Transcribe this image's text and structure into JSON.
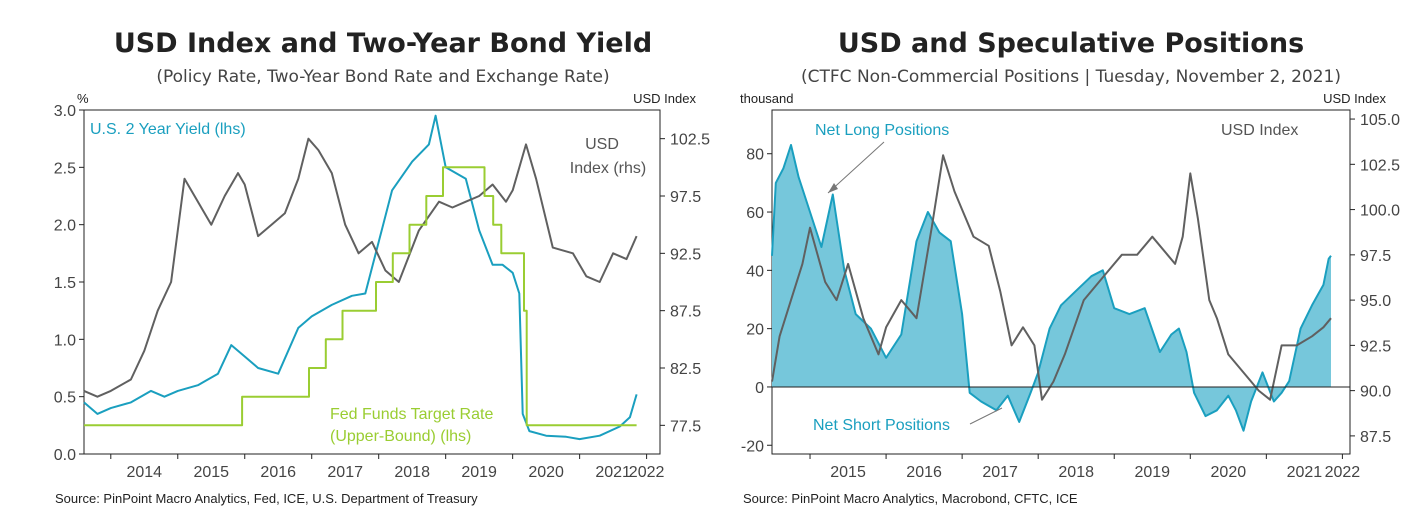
{
  "colors": {
    "usd": "#606060",
    "yield": "#1a9fbf",
    "fed": "#9acd32",
    "area_fill": "#76c7db",
    "area_line": "#1a9fbf",
    "frame": "#222222"
  },
  "charts": [
    {
      "title": "USD Index and Two-Year Bond Yield",
      "subtitle": "(Policy Rate, Two-Year Bond Rate and Exchange Rate)",
      "left_unit": "%",
      "right_unit": "USD Index",
      "source": "Source: PinPoint Macro Analytics, Fed, ICE, U.S. Department of Treasury",
      "annotations": {
        "yield": "U.S. 2 Year Yield (lhs)",
        "usd_line1": "USD",
        "usd_line2": "Index (rhs)",
        "fed_line1": "Fed Funds Target Rate",
        "fed_line2": "(Upper-Bound) (lhs)"
      }
    },
    {
      "title": "USD and Speculative Positions",
      "subtitle": "(CTFC Non-Commercial Positions | Tuesday, November 2, 2021)",
      "left_unit": "thousand",
      "right_unit": "USD Index",
      "source": "Source: PinPoint Macro Analytics, Macrobond, CFTC, ICE",
      "annotations": {
        "net_long": "Net Long Positions",
        "net_short": "Net Short Positions",
        "usd": "USD Index"
      }
    }
  ],
  "chart_data": [
    {
      "type": "line",
      "title": "USD Index and Two-Year Bond Yield",
      "subtitle": "(Policy Rate, Two-Year Bond Rate and Exchange Rate)",
      "ylabel": "%",
      "ylabel_right": "USD Index",
      "ylim": [
        0,
        3.0
      ],
      "ylim_right": [
        75.0,
        105.0
      ],
      "yticks": [
        "0.0",
        "0.5",
        "1.0",
        "1.5",
        "2.0",
        "2.5",
        "3.0"
      ],
      "yticks_right": [
        "77.5",
        "82.5",
        "87.5",
        "92.5",
        "97.5",
        "102.5"
      ],
      "xlim": [
        2013.6,
        2022.2
      ],
      "xticks": [
        "2014",
        "2015",
        "2016",
        "2017",
        "2018",
        "2019",
        "2020",
        "2021",
        "2022"
      ],
      "grid": false,
      "series": [
        {
          "name": "U.S. 2 Year Yield (lhs)",
          "axis": "left",
          "x": [
            2013.6,
            2013.8,
            2014.0,
            2014.3,
            2014.6,
            2014.8,
            2015.0,
            2015.3,
            2015.6,
            2015.8,
            2016.0,
            2016.2,
            2016.5,
            2016.8,
            2017.0,
            2017.3,
            2017.6,
            2017.8,
            2018.0,
            2018.2,
            2018.5,
            2018.75,
            2018.85,
            2019.0,
            2019.3,
            2019.5,
            2019.7,
            2019.85,
            2020.0,
            2020.1,
            2020.15,
            2020.25,
            2020.5,
            2020.8,
            2021.0,
            2021.3,
            2021.6,
            2021.75,
            2021.85
          ],
          "values": [
            0.45,
            0.35,
            0.4,
            0.45,
            0.55,
            0.5,
            0.55,
            0.6,
            0.7,
            0.95,
            0.85,
            0.75,
            0.7,
            1.1,
            1.2,
            1.3,
            1.38,
            1.4,
            1.85,
            2.3,
            2.55,
            2.7,
            2.95,
            2.5,
            2.4,
            1.95,
            1.65,
            1.65,
            1.58,
            1.4,
            0.35,
            0.2,
            0.16,
            0.15,
            0.13,
            0.16,
            0.24,
            0.32,
            0.52
          ]
        },
        {
          "name": "USD Index (rhs)",
          "axis": "right",
          "x": [
            2013.6,
            2013.8,
            2014.0,
            2014.3,
            2014.5,
            2014.7,
            2014.9,
            2015.1,
            2015.3,
            2015.5,
            2015.7,
            2015.9,
            2016.0,
            2016.2,
            2016.4,
            2016.6,
            2016.8,
            2016.95,
            2017.1,
            2017.3,
            2017.5,
            2017.7,
            2017.9,
            2018.1,
            2018.3,
            2018.6,
            2018.9,
            2019.1,
            2019.3,
            2019.5,
            2019.7,
            2019.9,
            2020.0,
            2020.2,
            2020.35,
            2020.6,
            2020.9,
            2021.1,
            2021.3,
            2021.5,
            2021.7,
            2021.85
          ],
          "values": [
            80.5,
            80.0,
            80.5,
            81.5,
            84.0,
            87.5,
            90.0,
            99.0,
            97.0,
            95.0,
            97.5,
            99.5,
            98.5,
            94.0,
            95.0,
            96.0,
            99.0,
            102.5,
            101.5,
            99.5,
            95.0,
            92.5,
            93.5,
            91.0,
            90.0,
            94.5,
            97.0,
            96.5,
            97.0,
            97.5,
            98.5,
            97.0,
            98.0,
            102.0,
            99.0,
            93.0,
            92.5,
            90.5,
            90.0,
            92.5,
            92.0,
            94.0
          ]
        },
        {
          "name": "Fed Funds Target Rate (Upper-Bound) (lhs)",
          "axis": "left",
          "step": true,
          "x": [
            2013.6,
            2015.96,
            2016.96,
            2017.21,
            2017.46,
            2017.96,
            2018.21,
            2018.46,
            2018.71,
            2018.96,
            2019.58,
            2019.71,
            2019.83,
            2020.17,
            2020.21,
            2021.85
          ],
          "values": [
            0.25,
            0.5,
            0.75,
            1.0,
            1.25,
            1.5,
            1.75,
            2.0,
            2.25,
            2.5,
            2.25,
            2.0,
            1.75,
            1.25,
            0.25,
            0.25
          ]
        }
      ]
    },
    {
      "type": "area",
      "title": "USD and Speculative Positions",
      "subtitle": "(CTFC Non-Commercial Positions | Tuesday, November 2, 2021)",
      "ylabel": "thousand",
      "ylabel_right": "USD Index",
      "ylim": [
        -23,
        95
      ],
      "ylim_right": [
        86.5,
        105.5
      ],
      "yticks": [
        "-20",
        "0",
        "20",
        "40",
        "60",
        "80"
      ],
      "yticks_right": [
        "87.5",
        "90.0",
        "92.5",
        "95.0",
        "97.5",
        "100.0",
        "102.5",
        "105.0"
      ],
      "xlim": [
        2014.5,
        2022.1
      ],
      "xticks": [
        "2015",
        "2016",
        "2017",
        "2018",
        "2019",
        "2020",
        "2021",
        "2022"
      ],
      "grid": false,
      "series": [
        {
          "name": "Net Long Positions",
          "axis": "left",
          "x": [
            2014.5,
            2014.55,
            2014.65,
            2014.75,
            2014.85,
            2015.0,
            2015.15,
            2015.3,
            2015.45,
            2015.6,
            2015.8,
            2016.0,
            2016.2,
            2016.4,
            2016.55,
            2016.7,
            2016.85,
            2017.0,
            2017.1,
            2017.25,
            2017.45,
            2017.6,
            2017.75,
            2017.9,
            2018.0,
            2018.15,
            2018.3,
            2018.5,
            2018.7,
            2018.85,
            2019.0,
            2019.2,
            2019.4,
            2019.6,
            2019.75,
            2019.85,
            2019.95,
            2020.05,
            2020.2,
            2020.35,
            2020.5,
            2020.6,
            2020.7,
            2020.8,
            2020.95,
            2021.1,
            2021.2,
            2021.3,
            2021.45,
            2021.6,
            2021.75,
            2021.82,
            2021.85
          ],
          "values": [
            45,
            70,
            75,
            83,
            72,
            60,
            48,
            66,
            40,
            25,
            20,
            10,
            18,
            50,
            60,
            53,
            50,
            25,
            -2,
            -5,
            -8,
            -3,
            -12,
            -2,
            5,
            20,
            28,
            33,
            38,
            40,
            27,
            25,
            27,
            12,
            18,
            20,
            12,
            -2,
            -10,
            -8,
            -3,
            -8,
            -15,
            -5,
            5,
            -5,
            -2,
            2,
            20,
            28,
            35,
            44,
            45
          ]
        },
        {
          "name": "USD Index",
          "axis": "right",
          "x": [
            2014.5,
            2014.6,
            2014.75,
            2014.9,
            2015.0,
            2015.2,
            2015.35,
            2015.5,
            2015.7,
            2015.9,
            2016.0,
            2016.2,
            2016.4,
            2016.6,
            2016.75,
            2016.9,
            2017.0,
            2017.15,
            2017.35,
            2017.5,
            2017.65,
            2017.8,
            2017.95,
            2018.05,
            2018.2,
            2018.35,
            2018.6,
            2018.9,
            2019.1,
            2019.3,
            2019.5,
            2019.7,
            2019.8,
            2019.9,
            2020.0,
            2020.1,
            2020.25,
            2020.35,
            2020.5,
            2020.7,
            2020.9,
            2021.05,
            2021.2,
            2021.4,
            2021.6,
            2021.75,
            2021.85
          ],
          "values": [
            90.5,
            93.0,
            95.0,
            97.0,
            99.0,
            96.0,
            95.0,
            97.0,
            94.0,
            92.0,
            93.5,
            95.0,
            94.0,
            99.0,
            103.0,
            101.0,
            100.0,
            98.5,
            98.0,
            95.5,
            92.5,
            93.5,
            92.5,
            89.5,
            90.5,
            92.0,
            95.0,
            96.5,
            97.5,
            97.5,
            98.5,
            97.5,
            97.0,
            98.5,
            102.0,
            99.5,
            95.0,
            94.0,
            92.0,
            91.0,
            90.0,
            89.5,
            92.5,
            92.5,
            93.0,
            93.5,
            94.0
          ]
        }
      ]
    }
  ]
}
